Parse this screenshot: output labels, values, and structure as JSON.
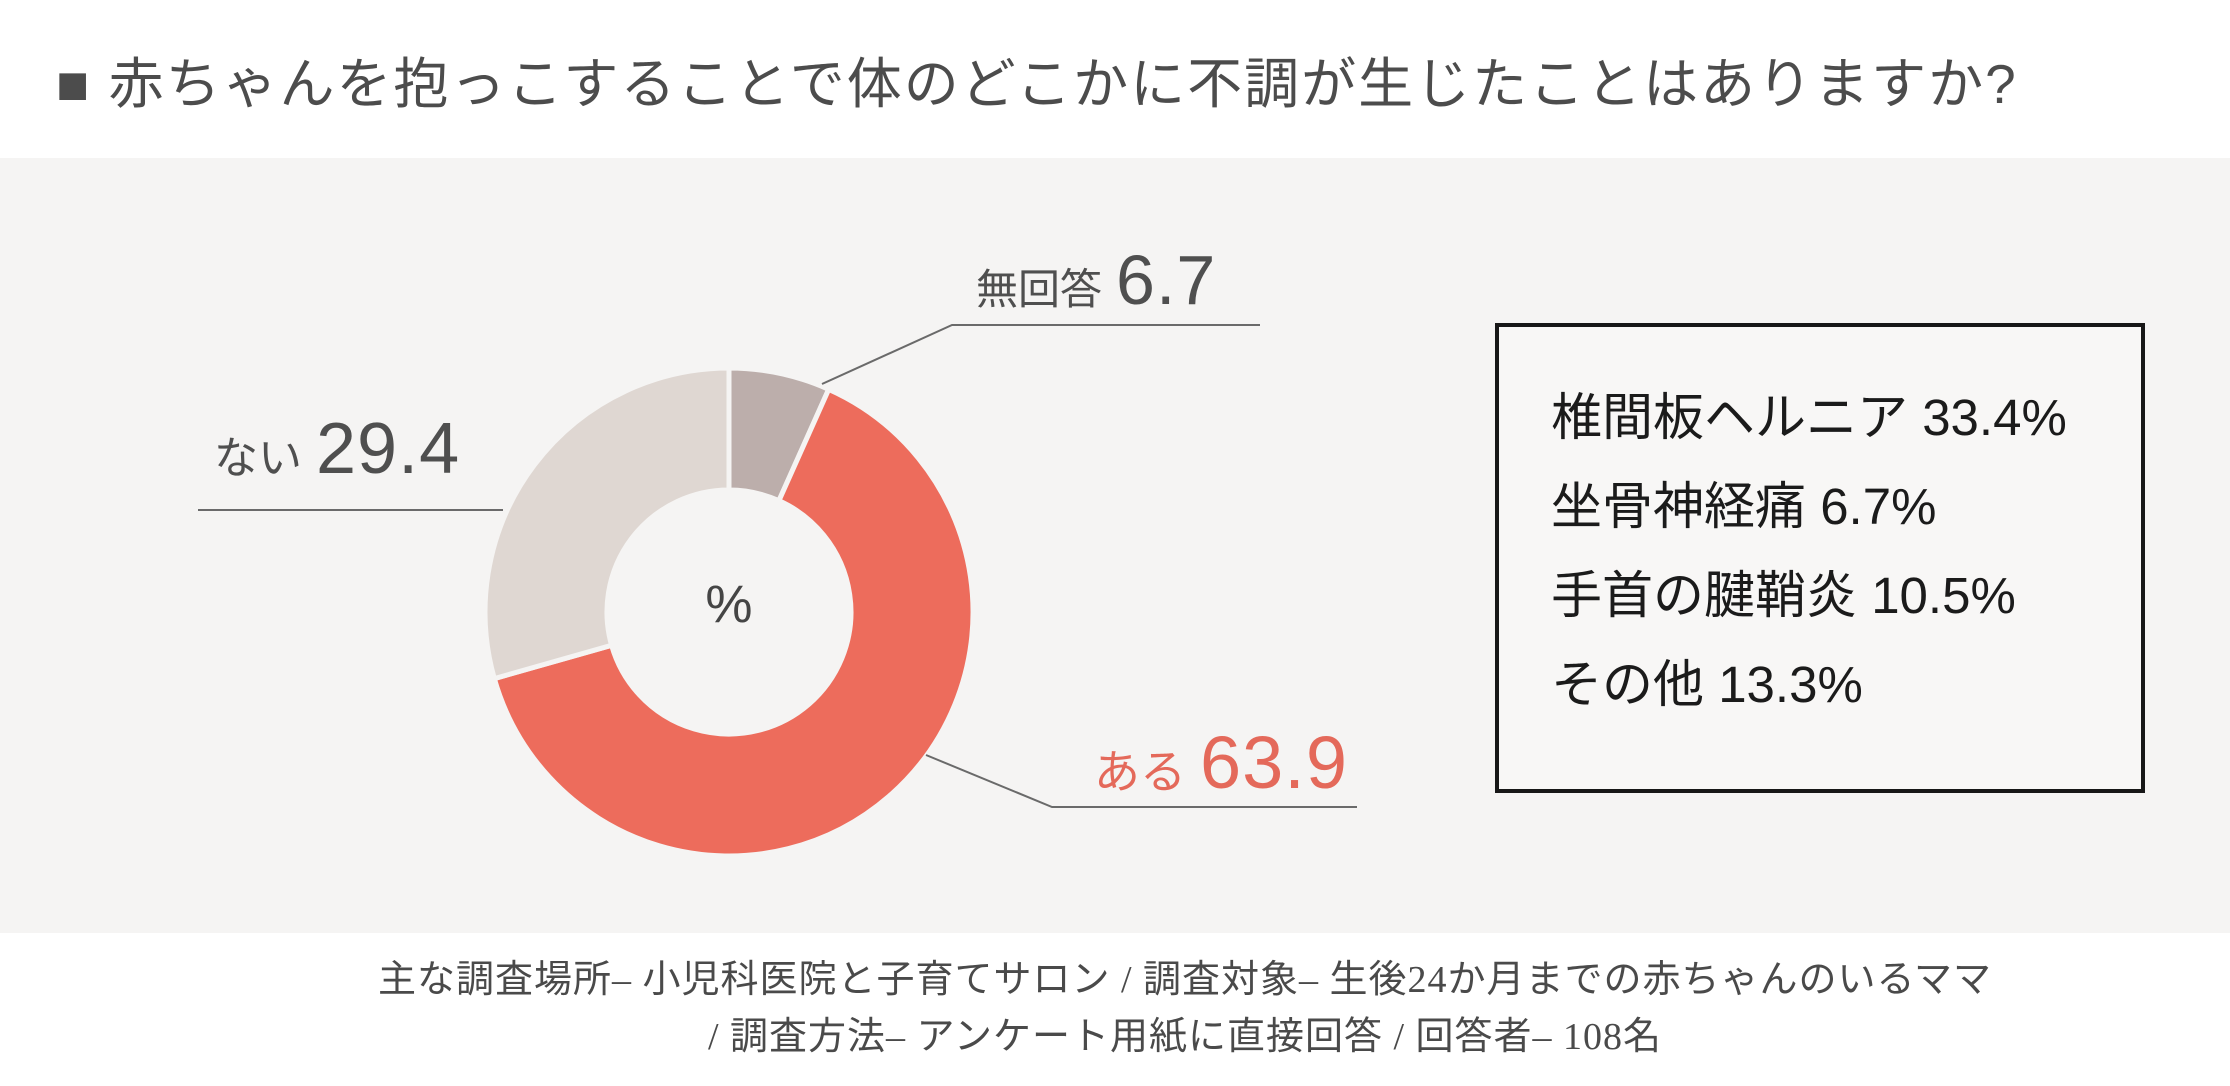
{
  "page": {
    "background": "#ffffff",
    "band_background": "#F5F4F3",
    "accent_color": "#ED6C5C",
    "text_color": "#4c4c4c"
  },
  "title": "■ 赤ちゃんを抱っこすることで体のどこかに不調が生じたことはありますか?",
  "chart_data": {
    "type": "pie",
    "subtype": "donut",
    "title": "赤ちゃんを抱っこすることで体のどこかに不調が生じたことはありますか?",
    "unit": "%",
    "center_label": "%",
    "direction": "clockwise",
    "start_angle_deg_from_top": 0,
    "segments": [
      {
        "key": "no_answer",
        "label": "無回答",
        "value": 6.7,
        "color": "#BCAEAB"
      },
      {
        "key": "yes",
        "label": "ある",
        "value": 63.9,
        "color": "#ED6C5C"
      },
      {
        "key": "no",
        "label": "ない",
        "value": 29.4,
        "color": "#DFD7D2"
      }
    ],
    "yes_breakdown": [
      {
        "label": "椎間板ヘルニア",
        "value": 33.4
      },
      {
        "label": "坐骨神経痛",
        "value": 6.7
      },
      {
        "label": "手首の腱鞘炎",
        "value": 10.5
      },
      {
        "label": "その他",
        "value": 13.3
      }
    ]
  },
  "callouts": {
    "no_answer": {
      "label": "無回答",
      "value": "6.7"
    },
    "no": {
      "label": "ない",
      "value": "29.4"
    },
    "yes": {
      "label": "ある",
      "value": "63.9"
    }
  },
  "breakdown_box": {
    "items": [
      {
        "label": "椎間板ヘルニア",
        "value": "33.4%"
      },
      {
        "label": "坐骨神経痛",
        "value": "6.7%"
      },
      {
        "label": "手首の腱鞘炎",
        "value": "10.5%"
      },
      {
        "label": "その他",
        "value": "13.3%"
      }
    ]
  },
  "footer": {
    "line1": "主な調査場所– 小児科医院と子育てサロン / 調査対象– 生後24か月までの赤ちゃんのいるママ",
    "line2": "/ 調査方法– アンケート用紙に直接回答 / 回答者– 108名"
  }
}
